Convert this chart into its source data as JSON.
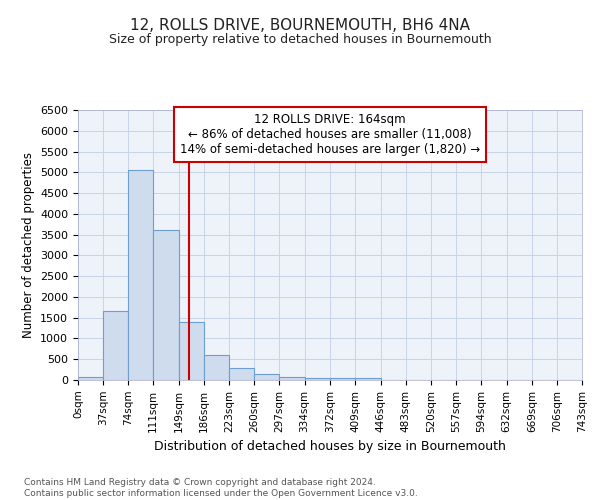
{
  "title": "12, ROLLS DRIVE, BOURNEMOUTH, BH6 4NA",
  "subtitle": "Size of property relative to detached houses in Bournemouth",
  "xlabel": "Distribution of detached houses by size in Bournemouth",
  "ylabel": "Number of detached properties",
  "footer_line1": "Contains HM Land Registry data © Crown copyright and database right 2024.",
  "footer_line2": "Contains public sector information licensed under the Open Government Licence v3.0.",
  "bin_edges": [
    0,
    37,
    74,
    111,
    149,
    186,
    223,
    260,
    297,
    334,
    372,
    409,
    446,
    483,
    520,
    557,
    594,
    632,
    669,
    706,
    743
  ],
  "bar_heights": [
    75,
    1650,
    5050,
    3600,
    1400,
    600,
    285,
    140,
    75,
    50,
    55,
    50,
    0,
    0,
    0,
    0,
    0,
    0,
    0,
    0
  ],
  "bar_color": "#cfdcee",
  "bar_edgecolor": "#6a9fd0",
  "grid_color": "#c8d4e8",
  "background_color": "#eef2f9",
  "red_line_x": 164,
  "annotation_title": "12 ROLLS DRIVE: 164sqm",
  "annotation_line1": "← 86% of detached houses are smaller (11,008)",
  "annotation_line2": "14% of semi-detached houses are larger (1,820) →",
  "annotation_box_color": "#ffffff",
  "annotation_box_edgecolor": "#cc0000",
  "red_line_color": "#cc0000",
  "ylim": [
    0,
    6500
  ],
  "yticks": [
    0,
    500,
    1000,
    1500,
    2000,
    2500,
    3000,
    3500,
    4000,
    4500,
    5000,
    5500,
    6000,
    6500
  ],
  "tick_labels": [
    "0sqm",
    "37sqm",
    "74sqm",
    "111sqm",
    "149sqm",
    "186sqm",
    "223sqm",
    "260sqm",
    "297sqm",
    "334sqm",
    "372sqm",
    "409sqm",
    "446sqm",
    "483sqm",
    "520sqm",
    "557sqm",
    "594sqm",
    "632sqm",
    "669sqm",
    "706sqm",
    "743sqm"
  ]
}
